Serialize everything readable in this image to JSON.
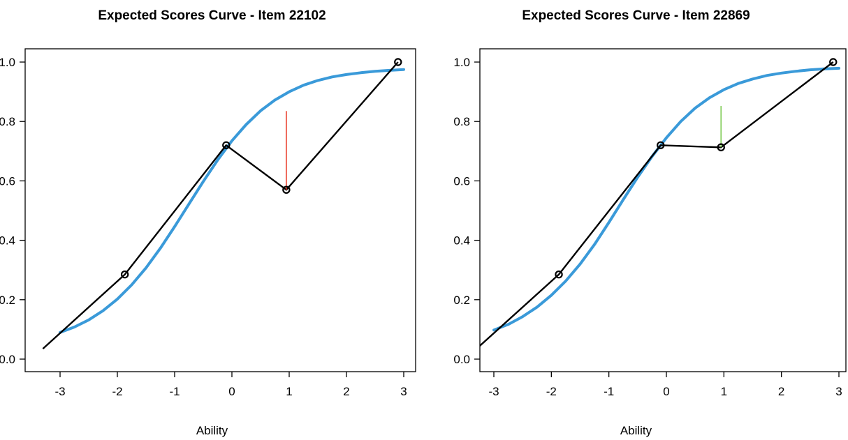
{
  "chart_data": [
    {
      "type": "line",
      "title": "Expected Scores Curve - Item  22102",
      "xlabel": "Ability",
      "ylabel": "",
      "xlim": [
        -3.3,
        3.0
      ],
      "ylim": [
        -0.02,
        1.03
      ],
      "xticks": [
        -3,
        -2,
        -1,
        0,
        1,
        2,
        3
      ],
      "yticks": [
        0.0,
        0.2,
        0.4,
        0.6,
        0.8,
        1.0
      ],
      "xtick_labels": [
        "-3",
        "-2",
        "-1",
        "0",
        "1",
        "2",
        "3"
      ],
      "ytick_labels": [
        "0.0",
        "0.2",
        "0.4",
        "0.6",
        "0.8",
        "1.0"
      ],
      "grid": false,
      "series": [
        {
          "kind": "expected-curve",
          "color": "#3a9ad9",
          "x": [
            -3.0,
            -2.75,
            -2.5,
            -2.25,
            -2.0,
            -1.75,
            -1.5,
            -1.25,
            -1.0,
            -0.75,
            -0.5,
            -0.25,
            0.0,
            0.25,
            0.5,
            0.75,
            1.0,
            1.25,
            1.5,
            1.75,
            2.0,
            2.25,
            2.5,
            2.75,
            3.0
          ],
          "y": [
            0.09,
            0.108,
            0.132,
            0.163,
            0.202,
            0.25,
            0.307,
            0.373,
            0.446,
            0.522,
            0.598,
            0.67,
            0.735,
            0.79,
            0.836,
            0.872,
            0.9,
            0.922,
            0.938,
            0.95,
            0.958,
            0.964,
            0.969,
            0.972,
            0.975
          ]
        },
        {
          "kind": "observed",
          "color": "#000000",
          "x": [
            -3.3,
            -1.87,
            -0.1,
            0.95,
            2.9
          ],
          "y": [
            0.035,
            0.285,
            0.72,
            0.57,
            1.0
          ],
          "markers": [
            false,
            true,
            true,
            true,
            true
          ]
        }
      ],
      "residual": {
        "x": 0.95,
        "from": 0.57,
        "to": 0.835,
        "color": "#e8321e"
      }
    },
    {
      "type": "line",
      "title": "Expected Scores Curve - Item  22869",
      "xlabel": "Ability",
      "ylabel": "",
      "xlim": [
        -3.3,
        3.0
      ],
      "ylim": [
        -0.02,
        1.03
      ],
      "xticks": [
        -3,
        -2,
        -1,
        0,
        1,
        2,
        3
      ],
      "yticks": [
        0.0,
        0.2,
        0.4,
        0.6,
        0.8,
        1.0
      ],
      "xtick_labels": [
        "-3",
        "-2",
        "-1",
        "0",
        "1",
        "2",
        "3"
      ],
      "ytick_labels": [
        "0.0",
        "0.2",
        "0.4",
        "0.6",
        "0.8",
        "1.0"
      ],
      "grid": false,
      "series": [
        {
          "kind": "expected-curve",
          "color": "#3a9ad9",
          "x": [
            -3.0,
            -2.75,
            -2.5,
            -2.25,
            -2.0,
            -1.75,
            -1.5,
            -1.25,
            -1.0,
            -0.75,
            -0.5,
            -0.25,
            0.0,
            0.25,
            0.5,
            0.75,
            1.0,
            1.25,
            1.5,
            1.75,
            2.0,
            2.25,
            2.5,
            2.75,
            3.0
          ],
          "y": [
            0.098,
            0.117,
            0.143,
            0.175,
            0.215,
            0.263,
            0.32,
            0.386,
            0.46,
            0.537,
            0.612,
            0.682,
            0.745,
            0.8,
            0.845,
            0.88,
            0.907,
            0.928,
            0.943,
            0.955,
            0.963,
            0.969,
            0.974,
            0.977,
            0.979
          ]
        },
        {
          "kind": "observed",
          "color": "#000000",
          "x": [
            -3.3,
            -1.87,
            -0.1,
            0.95,
            2.9
          ],
          "y": [
            0.035,
            0.285,
            0.72,
            0.713,
            1.0
          ],
          "markers": [
            false,
            true,
            true,
            true,
            true
          ]
        }
      ],
      "residual": {
        "x": 0.95,
        "from": 0.713,
        "to": 0.852,
        "color": "#77c84a"
      }
    }
  ]
}
